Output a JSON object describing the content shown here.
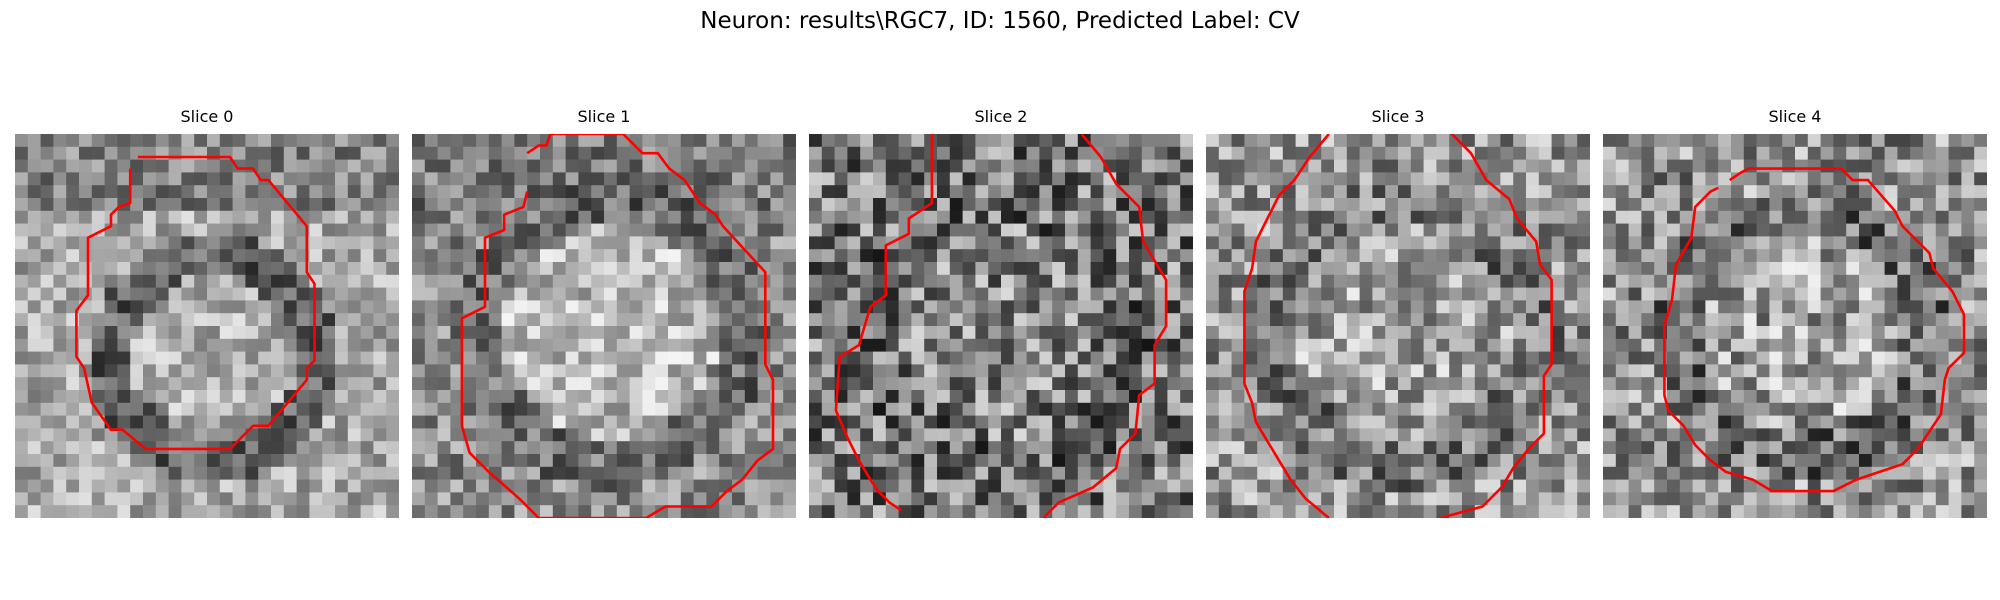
{
  "figure": {
    "suptitle": "Neuron: results\\RGC7, ID: 1560, Predicted Label: CV",
    "contour_color": "#ff0000"
  },
  "panels": [
    {
      "title": "Slice 0"
    },
    {
      "title": "Slice 1"
    },
    {
      "title": "Slice 2"
    },
    {
      "title": "Slice 3"
    },
    {
      "title": "Slice 4"
    }
  ]
}
